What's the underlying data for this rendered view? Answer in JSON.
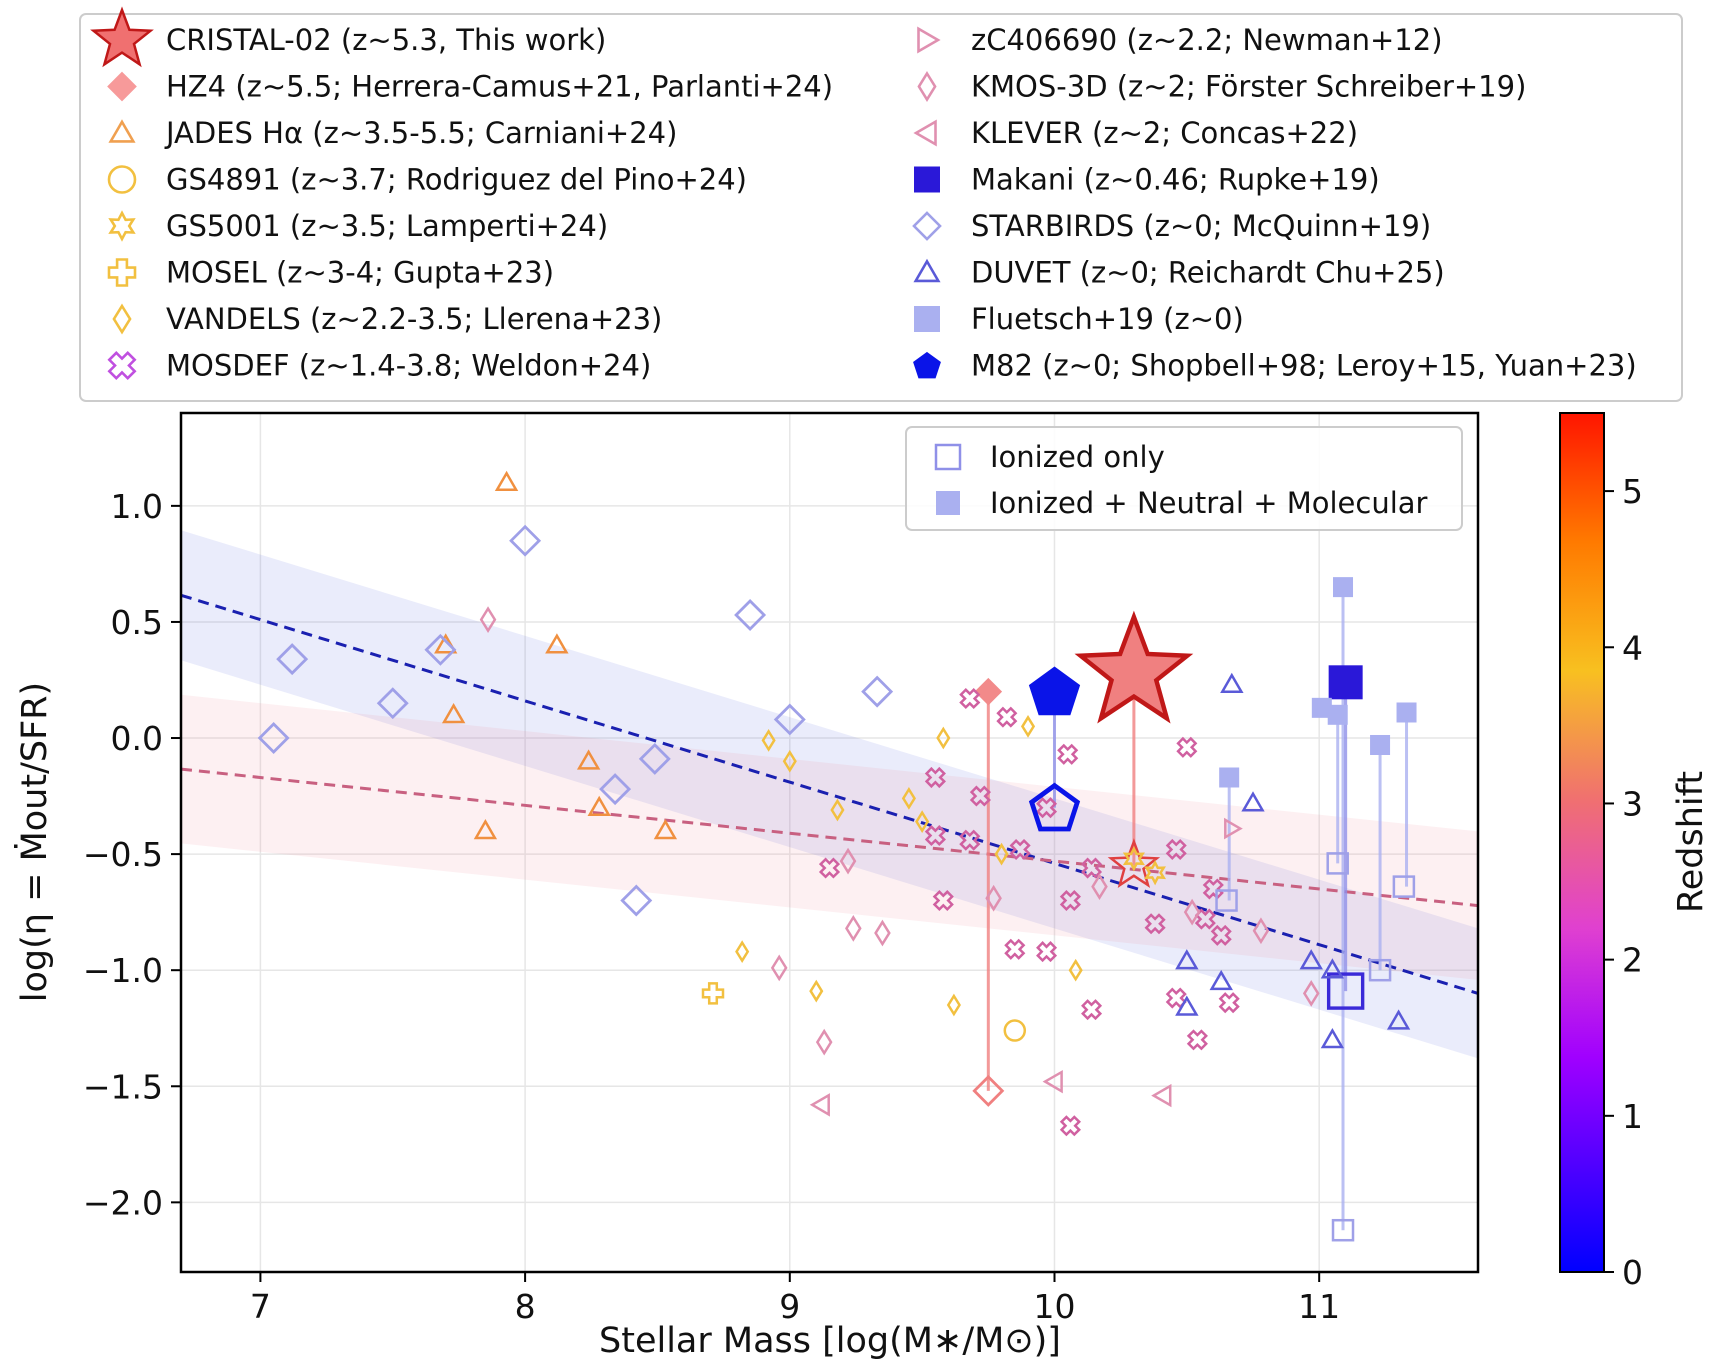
{
  "chart_data": {
    "type": "scatter",
    "xlabel": "Stellar Mass [log(M∗/M⊙)]",
    "ylabel": "log(η = Ṁout/SFR)",
    "xlim": [
      6.7,
      11.6
    ],
    "ylim": [
      -2.3,
      1.4
    ],
    "x_ticks": [
      7,
      8,
      9,
      10,
      11
    ],
    "x_tick_labels": [
      "7",
      "8",
      "9",
      "10",
      "11"
    ],
    "y_ticks": [
      1.0,
      0.5,
      0.0,
      -0.5,
      -1.0,
      -1.5,
      -2.0
    ],
    "y_tick_labels": [
      "1.0",
      "0.5",
      "0.0",
      "−0.5",
      "−1.0",
      "−1.5",
      "−2.0"
    ],
    "grid": true,
    "colorbar": {
      "label": "Redshift",
      "range": [
        0,
        5.5
      ],
      "ticks": [
        0,
        1,
        2,
        3,
        4,
        5
      ],
      "tick_labels": [
        "0",
        "1",
        "2",
        "3",
        "4",
        "5"
      ],
      "colormap": "blue-purple-magenta-orange-yellow-red"
    },
    "legend_top": {
      "placement": "above plot, two columns",
      "entries": [
        {
          "label": "CRISTAL-02 (z~5.3, This work)",
          "marker": "star",
          "filled": true,
          "color": "#f07070"
        },
        {
          "label": "HZ4 (z~5.5; Herrera-Camus+21, Parlanti+24)",
          "marker": "diamond",
          "filled": true,
          "color": "#f79a9a"
        },
        {
          "label": "JADES Hα (z~3.5-5.5; Carniani+24)",
          "marker": "triangle",
          "filled": false,
          "color": "#f0a050"
        },
        {
          "label": "GS4891 (z~3.7; Rodriguez del Pino+24)",
          "marker": "circle",
          "filled": false,
          "color": "#f2c040"
        },
        {
          "label": "GS5001 (z~3.5; Lamperti+24)",
          "marker": "star6",
          "filled": false,
          "color": "#f2c040"
        },
        {
          "label": "MOSEL (z~3-4; Gupta+23)",
          "marker": "plus",
          "filled": false,
          "color": "#f2c040"
        },
        {
          "label": "VANDELS (z~2.2-3.5; Llerena+23)",
          "marker": "thin-diamond",
          "filled": false,
          "color": "#f2c040"
        },
        {
          "label": "MOSDEF (z~1.4-3.8; Weldon+24)",
          "marker": "x-cross",
          "filled": false,
          "color": "#c050e0"
        },
        {
          "label": "zC406690 (z~2.2; Newman+12)",
          "marker": "triangle-right",
          "filled": false,
          "color": "#e090b0"
        },
        {
          "label": "KMOS-3D (z~2; Förster Schreiber+19)",
          "marker": "thin-diamond",
          "filled": false,
          "color": "#e090b0"
        },
        {
          "label": "KLEVER (z~2; Concas+22)",
          "marker": "triangle-left",
          "filled": false,
          "color": "#e090b0"
        },
        {
          "label": "Makani (z~0.46; Rupke+19)",
          "marker": "square",
          "filled": true,
          "color": "#2a18d8"
        },
        {
          "label": "STARBIRDS (z~0; McQuinn+19)",
          "marker": "diamond",
          "filled": false,
          "color": "#9fa0e8"
        },
        {
          "label": "DUVET (z~0; Reichardt Chu+25)",
          "marker": "triangle",
          "filled": false,
          "color": "#5a5ad8"
        },
        {
          "label": "Fluetsch+19 (z~0)",
          "marker": "square",
          "filled": true,
          "color": "#aab0f0"
        },
        {
          "label": "M82 (z~0; Shopbell+98; Leroy+15, Yuan+23)",
          "marker": "pentagon",
          "filled": true,
          "color": "#0a14e8"
        }
      ]
    },
    "legend_inner": {
      "placement": "top-right",
      "entries": [
        {
          "label": "Ionized only",
          "marker": "square",
          "filled": false,
          "color": "#8f90e8"
        },
        {
          "label": "Ionized + Neutral + Molecular",
          "marker": "square",
          "filled": true,
          "color": "#aab0f0"
        }
      ]
    },
    "fits": [
      {
        "slope": -0.35,
        "intercept": 2.96,
        "color": "#1a20b0",
        "band_halfwidth": 0.28,
        "band_color": "#5060e0"
      },
      {
        "slope": -0.12,
        "intercept": 0.67,
        "color": "#c86080",
        "band_halfwidth": 0.32,
        "band_color": "#f08090"
      }
    ],
    "series": [
      {
        "name": "CRISTAL-02 (z~5.3, This work)",
        "marker": "star",
        "filled": true,
        "size": 56,
        "color": "#f08080",
        "edge": "#c01818",
        "points": [
          {
            "x": 10.3,
            "y": 0.28
          }
        ]
      },
      {
        "name": "CRISTAL-02 (z~5.3, This work)",
        "marker": "star",
        "filled": false,
        "size": 24,
        "color": "#e04040",
        "points": [
          {
            "x": 10.3,
            "y": -0.55
          }
        ]
      },
      {
        "name": "HZ4 (z~5.5; Herrera-Camus+21, Parlanti+24)",
        "marker": "diamond",
        "filled": true,
        "size": 12,
        "color": "#f28a8a",
        "points": [
          {
            "x": 9.75,
            "y": 0.2
          }
        ]
      },
      {
        "name": "HZ4 (z~5.5; Herrera-Camus+21, Parlanti+24)",
        "marker": "diamond",
        "filled": false,
        "size": 14,
        "color": "#f08080",
        "points": [
          {
            "x": 9.75,
            "y": -1.52
          }
        ]
      },
      {
        "name": "JADES Hα (z~3.5-5.5; Carniani+24)",
        "marker": "triangle",
        "filled": false,
        "size": 11,
        "color": "#f09040",
        "points": [
          {
            "x": 7.93,
            "y": 1.1
          },
          {
            "x": 7.7,
            "y": 0.4
          },
          {
            "x": 8.12,
            "y": 0.4
          },
          {
            "x": 7.73,
            "y": 0.1
          },
          {
            "x": 8.24,
            "y": -0.1
          },
          {
            "x": 8.28,
            "y": -0.3
          },
          {
            "x": 7.85,
            "y": -0.4
          },
          {
            "x": 8.53,
            "y": -0.4
          }
        ]
      },
      {
        "name": "GS4891 (z~3.7; Rodriguez del Pino+24)",
        "marker": "circle",
        "filled": false,
        "size": 10,
        "color": "#f2c040",
        "points": [
          {
            "x": 9.85,
            "y": -1.26
          }
        ]
      },
      {
        "name": "GS5001 (z~3.5; Lamperti+24)",
        "marker": "star6",
        "filled": false,
        "size": 10,
        "color": "#f2c040",
        "points": [
          {
            "x": 10.3,
            "y": -0.52
          },
          {
            "x": 10.38,
            "y": -0.58
          }
        ]
      },
      {
        "name": "MOSEL (z~3-4; Gupta+23)",
        "marker": "plus",
        "filled": false,
        "size": 10,
        "color": "#f2c040",
        "points": [
          {
            "x": 8.71,
            "y": -1.1
          }
        ]
      },
      {
        "name": "VANDELS (z~2.2-3.5; Llerena+23)",
        "marker": "thin-diamond",
        "filled": false,
        "size": 9,
        "color": "#f2c040",
        "points": [
          {
            "x": 9.58,
            "y": 0.0
          },
          {
            "x": 9.9,
            "y": 0.05
          },
          {
            "x": 8.92,
            "y": -0.01
          },
          {
            "x": 9.45,
            "y": -0.26
          },
          {
            "x": 9.18,
            "y": -0.31
          },
          {
            "x": 9.5,
            "y": -0.36
          },
          {
            "x": 9.8,
            "y": -0.5
          },
          {
            "x": 8.82,
            "y": -0.92
          },
          {
            "x": 9.1,
            "y": -1.09
          },
          {
            "x": 9.62,
            "y": -1.15
          },
          {
            "x": 10.08,
            "y": -1.0
          },
          {
            "x": 9.0,
            "y": -0.1
          }
        ]
      },
      {
        "name": "MOSDEF (z~1.4-3.8; Weldon+24)",
        "marker": "x-cross",
        "filled": false,
        "size": 9,
        "color": "#d060a0",
        "points": [
          {
            "x": 10.05,
            "y": -0.07
          },
          {
            "x": 9.55,
            "y": -0.17
          },
          {
            "x": 9.72,
            "y": -0.25
          },
          {
            "x": 9.97,
            "y": -0.3
          },
          {
            "x": 9.55,
            "y": -0.42
          },
          {
            "x": 9.68,
            "y": -0.44
          },
          {
            "x": 9.87,
            "y": -0.48
          },
          {
            "x": 9.15,
            "y": -0.56
          },
          {
            "x": 9.58,
            "y": -0.7
          },
          {
            "x": 10.06,
            "y": -0.7
          },
          {
            "x": 10.14,
            "y": -0.56
          },
          {
            "x": 10.38,
            "y": -0.8
          },
          {
            "x": 10.46,
            "y": -0.48
          },
          {
            "x": 10.6,
            "y": -0.65
          },
          {
            "x": 10.63,
            "y": -0.85
          },
          {
            "x": 9.85,
            "y": -0.91
          },
          {
            "x": 9.97,
            "y": -0.92
          },
          {
            "x": 10.5,
            "y": -0.04
          },
          {
            "x": 10.14,
            "y": -1.17
          },
          {
            "x": 10.46,
            "y": -1.12
          },
          {
            "x": 10.54,
            "y": -1.3
          },
          {
            "x": 10.66,
            "y": -1.14
          },
          {
            "x": 10.06,
            "y": -1.67
          },
          {
            "x": 9.82,
            "y": 0.09
          },
          {
            "x": 9.68,
            "y": 0.17
          },
          {
            "x": 10.57,
            "y": -0.78
          }
        ]
      },
      {
        "name": "zC406690 (z~2.2; Newman+12)",
        "marker": "triangle-right",
        "filled": false,
        "size": 10,
        "color": "#e090b0",
        "points": [
          {
            "x": 10.67,
            "y": -0.39
          }
        ]
      },
      {
        "name": "KMOS-3D (z~2; Förster Schreiber+19)",
        "marker": "thin-diamond",
        "filled": false,
        "size": 11,
        "color": "#e090b0",
        "points": [
          {
            "x": 7.86,
            "y": 0.51
          },
          {
            "x": 9.22,
            "y": -0.53
          },
          {
            "x": 9.24,
            "y": -0.82
          },
          {
            "x": 9.35,
            "y": -0.84
          },
          {
            "x": 8.96,
            "y": -0.99
          },
          {
            "x": 9.13,
            "y": -1.31
          },
          {
            "x": 9.77,
            "y": -0.69
          },
          {
            "x": 10.17,
            "y": -0.64
          },
          {
            "x": 10.52,
            "y": -0.75
          },
          {
            "x": 10.78,
            "y": -0.83
          },
          {
            "x": 10.97,
            "y": -1.1
          }
        ]
      },
      {
        "name": "KLEVER (z~2; Concas+22)",
        "marker": "triangle-left",
        "filled": false,
        "size": 11,
        "color": "#e090b0",
        "points": [
          {
            "x": 9.12,
            "y": -1.58
          },
          {
            "x": 10.0,
            "y": -1.48
          },
          {
            "x": 10.41,
            "y": -1.54
          }
        ]
      },
      {
        "name": "Makani (z~0.46; Rupke+19)",
        "marker": "square",
        "filled": true,
        "size": 17,
        "color": "#2a18d8",
        "points": [
          {
            "x": 11.1,
            "y": 0.24
          }
        ]
      },
      {
        "name": "Makani (z~0.46; Rupke+19)",
        "marker": "square",
        "filled": false,
        "size": 17,
        "color": "#3a2ad8",
        "points": [
          {
            "x": 11.1,
            "y": -1.09
          }
        ]
      },
      {
        "name": "STARBIRDS (z~0; McQuinn+19)",
        "marker": "diamond",
        "filled": false,
        "size": 14,
        "color": "#9fa0e8",
        "points": [
          {
            "x": 8.0,
            "y": 0.85
          },
          {
            "x": 8.85,
            "y": 0.53
          },
          {
            "x": 7.12,
            "y": 0.34
          },
          {
            "x": 7.68,
            "y": 0.38
          },
          {
            "x": 7.5,
            "y": 0.15
          },
          {
            "x": 7.05,
            "y": 0.0
          },
          {
            "x": 9.33,
            "y": 0.2
          },
          {
            "x": 9.0,
            "y": 0.08
          },
          {
            "x": 8.49,
            "y": -0.09
          },
          {
            "x": 8.34,
            "y": -0.22
          },
          {
            "x": 8.42,
            "y": -0.7
          }
        ]
      },
      {
        "name": "DUVET (z~0; Reichardt Chu+25)",
        "marker": "triangle",
        "filled": false,
        "size": 11,
        "color": "#5a5ad8",
        "points": [
          {
            "x": 10.67,
            "y": 0.23
          },
          {
            "x": 10.75,
            "y": -0.28
          },
          {
            "x": 10.5,
            "y": -0.96
          },
          {
            "x": 10.63,
            "y": -1.05
          },
          {
            "x": 10.5,
            "y": -1.16
          },
          {
            "x": 10.97,
            "y": -0.96
          },
          {
            "x": 11.05,
            "y": -1.0
          },
          {
            "x": 11.05,
            "y": -1.3
          },
          {
            "x": 11.3,
            "y": -1.22
          }
        ]
      },
      {
        "name": "Fluetsch+19 (z~0)",
        "marker": "square",
        "filled": true,
        "size": 10,
        "color": "#aab0f0",
        "points": [
          {
            "x": 11.09,
            "y": 0.65
          },
          {
            "x": 11.01,
            "y": 0.13
          },
          {
            "x": 11.07,
            "y": 0.1
          },
          {
            "x": 11.33,
            "y": 0.11
          },
          {
            "x": 10.66,
            "y": -0.17
          },
          {
            "x": 11.23,
            "y": -0.03
          }
        ]
      },
      {
        "name": "Ionized only",
        "marker": "square",
        "filled": false,
        "size": 10,
        "color": "#9fa0e8",
        "points": [
          {
            "x": 11.09,
            "y": -2.12
          },
          {
            "x": 11.07,
            "y": -0.54
          },
          {
            "x": 11.32,
            "y": -0.64
          },
          {
            "x": 11.23,
            "y": -1.0
          },
          {
            "x": 10.65,
            "y": -0.7
          }
        ]
      },
      {
        "name": "M82 (z~0; Shopbell+98; Leroy+15, Yuan+23)",
        "marker": "pentagon",
        "filled": true,
        "size": 24,
        "color": "#0a14e8",
        "points": [
          {
            "x": 10.0,
            "y": 0.2
          }
        ]
      },
      {
        "name": "M82 (z~0; Shopbell+98; Leroy+15, Yuan+23)",
        "marker": "pentagon",
        "filled": false,
        "size": 24,
        "color": "#0a14e8",
        "points": [
          {
            "x": 10.0,
            "y": -0.3
          }
        ]
      }
    ],
    "connectors": [
      {
        "x": 10.3,
        "y1": 0.28,
        "y2": -0.55,
        "color": "#f08080"
      },
      {
        "x": 9.75,
        "y1": 0.2,
        "y2": -1.52,
        "color": "#f08080"
      },
      {
        "x": 10.0,
        "y1": 0.2,
        "y2": -0.3,
        "color": "#8f90e8"
      },
      {
        "x": 11.09,
        "y1": 0.65,
        "y2": -2.12,
        "color": "#aab0f0"
      },
      {
        "x": 11.07,
        "y1": 0.1,
        "y2": -0.54,
        "color": "#aab0f0"
      },
      {
        "x": 11.33,
        "y1": 0.11,
        "y2": -0.64,
        "color": "#aab0f0"
      },
      {
        "x": 11.23,
        "y1": -0.03,
        "y2": -1.0,
        "color": "#aab0f0"
      },
      {
        "x": 10.66,
        "y1": -0.17,
        "y2": -0.7,
        "color": "#aab0f0"
      },
      {
        "x": 11.1,
        "y1": 0.24,
        "y2": -1.09,
        "color": "#8f90e8"
      }
    ]
  }
}
